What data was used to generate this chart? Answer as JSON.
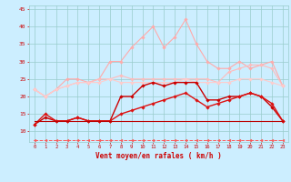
{
  "x": [
    0,
    1,
    2,
    3,
    4,
    5,
    6,
    7,
    8,
    9,
    10,
    11,
    12,
    13,
    14,
    15,
    16,
    17,
    18,
    19,
    20,
    21,
    22,
    23
  ],
  "series": [
    {
      "name": "line1_pink_high",
      "color": "#ffaaaa",
      "linewidth": 0.8,
      "marker": "D",
      "markersize": 1.8,
      "y": [
        22,
        20,
        22,
        25,
        25,
        24,
        25,
        30,
        30,
        34,
        37,
        40,
        34,
        37,
        42,
        35,
        30,
        28,
        28,
        30,
        28,
        29,
        30,
        23
      ]
    },
    {
      "name": "line2_pink_mid",
      "color": "#ffbbbb",
      "linewidth": 0.8,
      "marker": "D",
      "markersize": 1.8,
      "y": [
        22,
        20,
        22,
        23,
        24,
        24,
        25,
        25,
        26,
        25,
        25,
        25,
        25,
        25,
        25,
        25,
        25,
        24,
        27,
        28,
        29,
        29,
        28,
        23
      ]
    },
    {
      "name": "line3_pink_lower",
      "color": "#ffcccc",
      "linewidth": 0.8,
      "marker": "D",
      "markersize": 1.8,
      "y": [
        22,
        20,
        22,
        23,
        24,
        24,
        24,
        25,
        24,
        24,
        24,
        24,
        24,
        24,
        25,
        24,
        24,
        24,
        24,
        25,
        25,
        25,
        24,
        23
      ]
    },
    {
      "name": "line4_red_jagged",
      "color": "#cc0000",
      "linewidth": 1.0,
      "marker": "D",
      "markersize": 1.8,
      "y": [
        12,
        14,
        13,
        13,
        14,
        13,
        13,
        13,
        20,
        20,
        23,
        24,
        23,
        24,
        24,
        24,
        19,
        19,
        20,
        20,
        21,
        20,
        17,
        13
      ]
    },
    {
      "name": "line5_red_smooth",
      "color": "#dd1111",
      "linewidth": 1.0,
      "marker": "D",
      "markersize": 1.8,
      "y": [
        12,
        15,
        13,
        13,
        14,
        13,
        13,
        13,
        15,
        16,
        17,
        18,
        19,
        20,
        21,
        19,
        17,
        18,
        19,
        20,
        21,
        20,
        18,
        13
      ]
    },
    {
      "name": "line6_red_flat",
      "color": "#bb0000",
      "linewidth": 0.8,
      "marker": null,
      "markersize": 0,
      "linestyle": "-",
      "y": [
        13,
        13,
        13,
        13,
        13,
        13,
        13,
        13,
        13,
        13,
        13,
        13,
        13,
        13,
        13,
        13,
        13,
        13,
        13,
        13,
        13,
        13,
        13,
        13
      ]
    },
    {
      "name": "line7_dashed_bottom",
      "color": "#ff5555",
      "linewidth": 0.7,
      "linestyle": "--",
      "marker": "<",
      "markersize": 2.0,
      "y": [
        7.5,
        7.5,
        7.5,
        7.5,
        7.5,
        7.5,
        7.5,
        7.5,
        7.5,
        7.5,
        7.5,
        7.5,
        7.5,
        7.5,
        7.5,
        7.5,
        7.5,
        7.5,
        7.5,
        7.5,
        7.5,
        7.5,
        7.5,
        7.5
      ]
    }
  ],
  "xlim": [
    -0.5,
    23.5
  ],
  "ylim": [
    7,
    46
  ],
  "yticks": [
    10,
    15,
    20,
    25,
    30,
    35,
    40,
    45
  ],
  "xticks": [
    0,
    1,
    2,
    3,
    4,
    5,
    6,
    7,
    8,
    9,
    10,
    11,
    12,
    13,
    14,
    15,
    16,
    17,
    18,
    19,
    20,
    21,
    22,
    23
  ],
  "xlabel": "Vent moyen/en rafales ( km/h )",
  "background_color": "#cceeff",
  "grid_color": "#99cccc",
  "tick_color": "#cc0000",
  "label_color": "#cc0000",
  "figsize": [
    3.2,
    2.0
  ],
  "dpi": 100
}
